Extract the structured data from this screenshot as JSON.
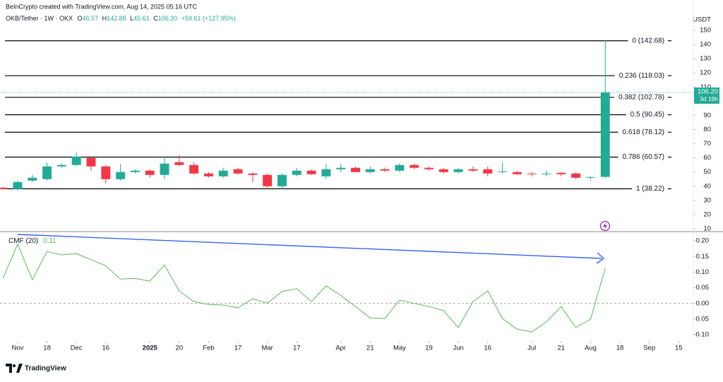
{
  "header": {
    "credit": "BeInCrypto created with TradingView.com, Aug 14, 2025 05:16 UTC",
    "symbol": "OKB/Tether · 1W · OKX",
    "ohlc": [
      {
        "key": "O",
        "value": "46.57"
      },
      {
        "key": "H",
        "value": "142.88"
      },
      {
        "key": "L",
        "value": "45.61"
      },
      {
        "key": "C",
        "value": "106.20"
      }
    ],
    "change": "+59.61 (+127.95%)",
    "currency": "USDT",
    "countdown": "3d 19h",
    "logo": "TradingView"
  },
  "chart_data": [
    {
      "type": "candlestick",
      "open": [
        39,
        38,
        44,
        45,
        54,
        55,
        60,
        54,
        45,
        50,
        51,
        48,
        57,
        55,
        49,
        47,
        52,
        49,
        48,
        40,
        48,
        51,
        47,
        52,
        53,
        50,
        52,
        51,
        55,
        53,
        52,
        50,
        52,
        52,
        50,
        50,
        49,
        48.5,
        49.5,
        49,
        46,
        46.57
      ],
      "high": [
        39.5,
        44,
        48,
        57,
        56,
        64,
        61,
        55,
        56,
        52,
        52,
        61,
        62,
        57,
        50,
        53,
        53,
        50,
        49,
        49,
        53,
        52,
        56,
        56,
        54,
        54,
        53,
        56,
        56,
        54,
        53,
        53,
        54,
        54,
        57,
        51,
        50,
        51,
        50,
        50,
        47,
        142.88
      ],
      "low": [
        37.5,
        37,
        43,
        44,
        53,
        54,
        51,
        42,
        44,
        49,
        46,
        45,
        54,
        48,
        46,
        46,
        48,
        43,
        39,
        38,
        47,
        48,
        45,
        50,
        50,
        49,
        50,
        50,
        52,
        51,
        49,
        49,
        50,
        47,
        49,
        48,
        47,
        47,
        47,
        45,
        44,
        45.61
      ],
      "close": [
        38,
        43,
        46,
        54,
        55,
        60.8,
        54,
        45,
        50,
        51,
        48,
        56,
        55,
        49,
        47,
        51,
        49,
        48,
        40,
        48,
        51,
        48.5,
        52,
        53,
        50,
        52,
        51,
        55,
        53,
        52,
        50,
        52,
        51,
        49,
        50.5,
        48.5,
        48.5,
        49,
        48.5,
        46,
        46.5,
        106.2
      ],
      "last_price_label": "106.20",
      "up_color": "#22ab94",
      "down_color": "#f23645",
      "xlim": [
        -0.2,
        46.9
      ],
      "ylim": [
        8.5,
        153.5
      ],
      "yticks": [
        10,
        20,
        30,
        40,
        50,
        60,
        70,
        80,
        90,
        110,
        120,
        130,
        140,
        150
      ],
      "fib_levels": [
        {
          "value": 142.68,
          "label": "0 (142.68)"
        },
        {
          "value": 118.03,
          "label": "0.236 (118.03)"
        },
        {
          "value": 102.78,
          "label": "0.382 (102.78)"
        },
        {
          "value": 90.45,
          "label": "0.5 (90.45)"
        },
        {
          "value": 78.12,
          "label": "0.618 (78.12)"
        },
        {
          "value": 60.57,
          "label": "0.786 (60.57)"
        },
        {
          "value": 38.22,
          "label": "1 (38.22)"
        }
      ],
      "fib_color": "#000000"
    },
    {
      "type": "line",
      "title": "CMF (20)",
      "last_value_label": "0.11",
      "color": "#5cb85c",
      "values": [
        0.08,
        0.19,
        0.076,
        0.166,
        0.155,
        0.159,
        0.14,
        0.12,
        0.078,
        0.08,
        0.071,
        0.123,
        0.04,
        0.006,
        -0.003,
        -0.005,
        -0.014,
        0.015,
        0.001,
        0.038,
        0.047,
        0.006,
        0.056,
        0.026,
        -0.01,
        -0.046,
        -0.048,
        0.011,
        0,
        -0.01,
        -0.023,
        -0.077,
        0.006,
        0.04,
        -0.048,
        -0.082,
        -0.091,
        -0.059,
        -0.01,
        -0.077,
        -0.05,
        0.112
      ],
      "xlim": [
        -0.2,
        46.9
      ],
      "ylim": [
        -0.12,
        0.225
      ],
      "yticks": [
        {
          "value": 0.2,
          "label": "0.20"
        },
        0.15,
        {
          "value": 0.1,
          "label": "0.10"
        },
        0.05,
        {
          "value": 0,
          "label": "0.00"
        },
        -0.05,
        {
          "value": -0.1,
          "label": "-0.10"
        }
      ],
      "zero_line": 0,
      "xticks": [
        {
          "value": 1,
          "label": "Nov"
        },
        {
          "value": 3,
          "label": "18"
        },
        {
          "value": 5,
          "label": "Dec"
        },
        {
          "value": 7,
          "label": "16"
        },
        {
          "value": 10,
          "label": "2025"
        },
        {
          "value": 12,
          "label": "20"
        },
        {
          "value": 14,
          "label": "Feb"
        },
        {
          "value": 16,
          "label": "17"
        },
        {
          "value": 18,
          "label": "Mar"
        },
        {
          "value": 20,
          "label": "17"
        },
        {
          "value": 23,
          "label": "Apr"
        },
        {
          "value": 25,
          "label": "21"
        },
        {
          "value": 27,
          "label": "May"
        },
        {
          "value": 29,
          "label": "19"
        },
        {
          "value": 31,
          "label": "Jun"
        },
        {
          "value": 33,
          "label": "16"
        },
        {
          "value": 36,
          "label": "Jul"
        },
        {
          "value": 38,
          "label": "21"
        },
        {
          "value": 40,
          "label": "Aug"
        },
        {
          "value": 42,
          "label": "18"
        },
        {
          "value": 44,
          "label": "Sep"
        },
        {
          "value": 46,
          "label": "15"
        }
      ]
    }
  ]
}
